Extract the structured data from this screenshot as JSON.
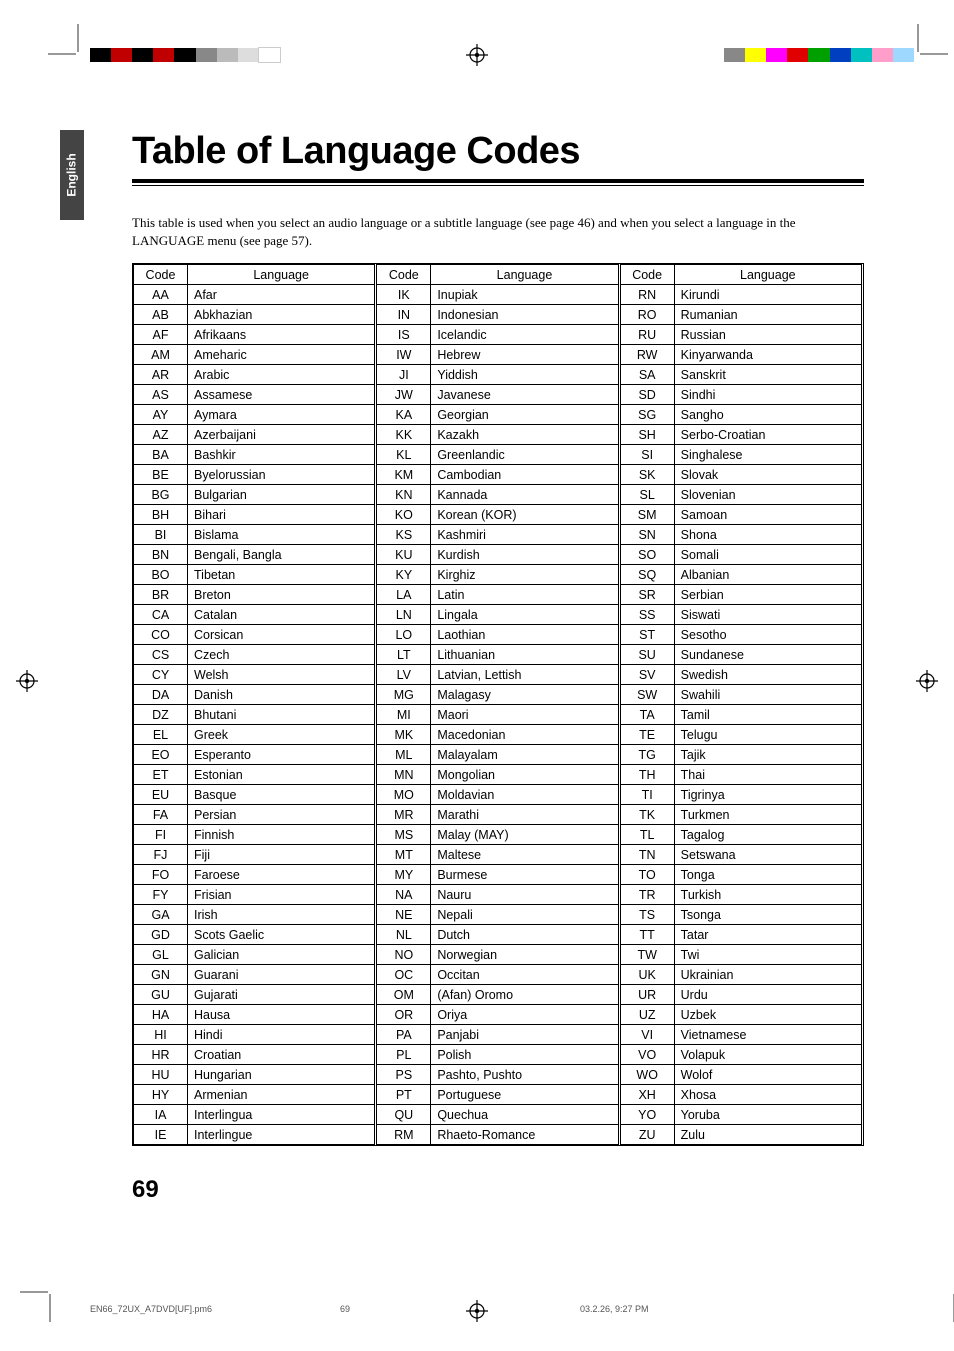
{
  "side_tab": "English",
  "title": "Table of Language Codes",
  "intro": "This table is used when you select an audio language or a subtitle language (see page 46) and when you select a language in the LANGUAGE menu (see page 57).",
  "headers": {
    "code": "Code",
    "language": "Language"
  },
  "columns": [
    [
      [
        "AA",
        "Afar"
      ],
      [
        "AB",
        "Abkhazian"
      ],
      [
        "AF",
        "Afrikaans"
      ],
      [
        "AM",
        "Ameharic"
      ],
      [
        "AR",
        "Arabic"
      ],
      [
        "AS",
        "Assamese"
      ],
      [
        "AY",
        "Aymara"
      ],
      [
        "AZ",
        "Azerbaijani"
      ],
      [
        "BA",
        "Bashkir"
      ],
      [
        "BE",
        "Byelorussian"
      ],
      [
        "BG",
        "Bulgarian"
      ],
      [
        "BH",
        "Bihari"
      ],
      [
        "BI",
        "Bislama"
      ],
      [
        "BN",
        "Bengali, Bangla"
      ],
      [
        "BO",
        "Tibetan"
      ],
      [
        "BR",
        "Breton"
      ],
      [
        "CA",
        "Catalan"
      ],
      [
        "CO",
        "Corsican"
      ],
      [
        "CS",
        "Czech"
      ],
      [
        "CY",
        "Welsh"
      ],
      [
        "DA",
        "Danish"
      ],
      [
        "DZ",
        "Bhutani"
      ],
      [
        "EL",
        "Greek"
      ],
      [
        "EO",
        "Esperanto"
      ],
      [
        "ET",
        "Estonian"
      ],
      [
        "EU",
        "Basque"
      ],
      [
        "FA",
        "Persian"
      ],
      [
        "FI",
        "Finnish"
      ],
      [
        "FJ",
        "Fiji"
      ],
      [
        "FO",
        "Faroese"
      ],
      [
        "FY",
        "Frisian"
      ],
      [
        "GA",
        "Irish"
      ],
      [
        "GD",
        "Scots Gaelic"
      ],
      [
        "GL",
        "Galician"
      ],
      [
        "GN",
        "Guarani"
      ],
      [
        "GU",
        "Gujarati"
      ],
      [
        "HA",
        "Hausa"
      ],
      [
        "HI",
        "Hindi"
      ],
      [
        "HR",
        "Croatian"
      ],
      [
        "HU",
        "Hungarian"
      ],
      [
        "HY",
        "Armenian"
      ],
      [
        "IA",
        "Interlingua"
      ],
      [
        "IE",
        "Interlingue"
      ]
    ],
    [
      [
        "IK",
        "Inupiak"
      ],
      [
        "IN",
        "Indonesian"
      ],
      [
        "IS",
        "Icelandic"
      ],
      [
        "IW",
        "Hebrew"
      ],
      [
        "JI",
        "Yiddish"
      ],
      [
        "JW",
        "Javanese"
      ],
      [
        "KA",
        "Georgian"
      ],
      [
        "KK",
        "Kazakh"
      ],
      [
        "KL",
        "Greenlandic"
      ],
      [
        "KM",
        "Cambodian"
      ],
      [
        "KN",
        "Kannada"
      ],
      [
        "KO",
        "Korean (KOR)"
      ],
      [
        "KS",
        "Kashmiri"
      ],
      [
        "KU",
        "Kurdish"
      ],
      [
        "KY",
        "Kirghiz"
      ],
      [
        "LA",
        "Latin"
      ],
      [
        "LN",
        "Lingala"
      ],
      [
        "LO",
        "Laothian"
      ],
      [
        "LT",
        "Lithuanian"
      ],
      [
        "LV",
        "Latvian, Lettish"
      ],
      [
        "MG",
        "Malagasy"
      ],
      [
        "MI",
        "Maori"
      ],
      [
        "MK",
        "Macedonian"
      ],
      [
        "ML",
        "Malayalam"
      ],
      [
        "MN",
        "Mongolian"
      ],
      [
        "MO",
        "Moldavian"
      ],
      [
        "MR",
        "Marathi"
      ],
      [
        "MS",
        "Malay (MAY)"
      ],
      [
        "MT",
        "Maltese"
      ],
      [
        "MY",
        "Burmese"
      ],
      [
        "NA",
        "Nauru"
      ],
      [
        "NE",
        "Nepali"
      ],
      [
        "NL",
        "Dutch"
      ],
      [
        "NO",
        "Norwegian"
      ],
      [
        "OC",
        "Occitan"
      ],
      [
        "OM",
        "(Afan) Oromo"
      ],
      [
        "OR",
        "Oriya"
      ],
      [
        "PA",
        "Panjabi"
      ],
      [
        "PL",
        "Polish"
      ],
      [
        "PS",
        "Pashto, Pushto"
      ],
      [
        "PT",
        "Portuguese"
      ],
      [
        "QU",
        "Quechua"
      ],
      [
        "RM",
        "Rhaeto-Romance"
      ]
    ],
    [
      [
        "RN",
        "Kirundi"
      ],
      [
        "RO",
        "Rumanian"
      ],
      [
        "RU",
        "Russian"
      ],
      [
        "RW",
        "Kinyarwanda"
      ],
      [
        "SA",
        "Sanskrit"
      ],
      [
        "SD",
        "Sindhi"
      ],
      [
        "SG",
        "Sangho"
      ],
      [
        "SH",
        "Serbo-Croatian"
      ],
      [
        "SI",
        "Singhalese"
      ],
      [
        "SK",
        "Slovak"
      ],
      [
        "SL",
        "Slovenian"
      ],
      [
        "SM",
        "Samoan"
      ],
      [
        "SN",
        "Shona"
      ],
      [
        "SO",
        "Somali"
      ],
      [
        "SQ",
        "Albanian"
      ],
      [
        "SR",
        "Serbian"
      ],
      [
        "SS",
        "Siswati"
      ],
      [
        "ST",
        "Sesotho"
      ],
      [
        "SU",
        "Sundanese"
      ],
      [
        "SV",
        "Swedish"
      ],
      [
        "SW",
        "Swahili"
      ],
      [
        "TA",
        "Tamil"
      ],
      [
        "TE",
        "Telugu"
      ],
      [
        "TG",
        "Tajik"
      ],
      [
        "TH",
        "Thai"
      ],
      [
        "TI",
        "Tigrinya"
      ],
      [
        "TK",
        "Turkmen"
      ],
      [
        "TL",
        "Tagalog"
      ],
      [
        "TN",
        "Setswana"
      ],
      [
        "TO",
        "Tonga"
      ],
      [
        "TR",
        "Turkish"
      ],
      [
        "TS",
        "Tsonga"
      ],
      [
        "TT",
        "Tatar"
      ],
      [
        "TW",
        "Twi"
      ],
      [
        "UK",
        "Ukrainian"
      ],
      [
        "UR",
        "Urdu"
      ],
      [
        "UZ",
        "Uzbek"
      ],
      [
        "VI",
        "Vietnamese"
      ],
      [
        "VO",
        "Volapuk"
      ],
      [
        "WO",
        "Wolof"
      ],
      [
        "XH",
        "Xhosa"
      ],
      [
        "YO",
        "Yoruba"
      ],
      [
        "ZU",
        "Zulu"
      ]
    ]
  ],
  "page_number": "69",
  "footer": {
    "filename": "EN66_72UX_A7DVD[UF].pm6",
    "page": "69",
    "timestamp": "03.2.26, 9:27 PM"
  },
  "colorbars": {
    "left": [
      "#000000",
      "#c00000",
      "#000000",
      "#c00000",
      "#000000",
      "#888888",
      "#bbbbbb",
      "#dddddd",
      "#ffffff"
    ],
    "right": [
      "#888888",
      "#ffff00",
      "#ff00ff",
      "#e00000",
      "#00a000",
      "#0040c0",
      "#00c0c0",
      "#ff9ecb",
      "#9ed8ff"
    ]
  }
}
